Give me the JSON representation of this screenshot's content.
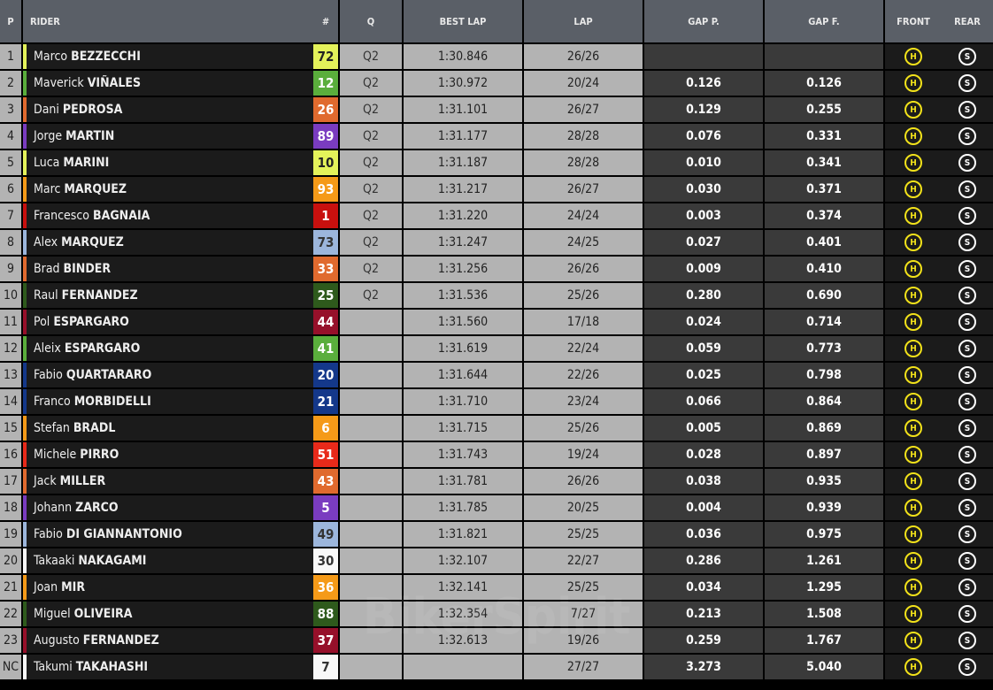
{
  "headers": {
    "p": "P",
    "rider": "RIDER",
    "num": "#",
    "q": "Q",
    "best": "BEST LAP",
    "lap": "LAP",
    "gap_p": "GAP P.",
    "gap_f": "GAP F.",
    "front": "FRONT",
    "rear": "REAR"
  },
  "tyre_colors": {
    "H": "#f2e21a",
    "S": "#ffffff"
  },
  "watermark": "BikerSpirit",
  "rows": [
    {
      "p": "1",
      "first": "Marco",
      "last": "BEZZECCHI",
      "num": "72",
      "color": "#e4f25a",
      "text": "#222",
      "q": "Q2",
      "best": "1:30.846",
      "lap": "26/26",
      "gap_p": "",
      "gap_f": "",
      "front": "H",
      "rear": "S"
    },
    {
      "p": "2",
      "first": "Maverick",
      "last": "VIÑALES",
      "num": "12",
      "color": "#5aae3c",
      "text": "#fff",
      "q": "Q2",
      "best": "1:30.972",
      "lap": "20/24",
      "gap_p": "0.126",
      "gap_f": "0.126",
      "front": "H",
      "rear": "S"
    },
    {
      "p": "3",
      "first": "Dani",
      "last": "PEDROSA",
      "num": "26",
      "color": "#e06a2e",
      "text": "#fff",
      "q": "Q2",
      "best": "1:31.101",
      "lap": "26/27",
      "gap_p": "0.129",
      "gap_f": "0.255",
      "front": "H",
      "rear": "S"
    },
    {
      "p": "4",
      "first": "Jorge",
      "last": "MARTIN",
      "num": "89",
      "color": "#7a3cc0",
      "text": "#fff",
      "q": "Q2",
      "best": "1:31.177",
      "lap": "28/28",
      "gap_p": "0.076",
      "gap_f": "0.331",
      "front": "H",
      "rear": "S"
    },
    {
      "p": "5",
      "first": "Luca",
      "last": "MARINI",
      "num": "10",
      "color": "#e4f25a",
      "text": "#222",
      "q": "Q2",
      "best": "1:31.187",
      "lap": "28/28",
      "gap_p": "0.010",
      "gap_f": "0.341",
      "front": "H",
      "rear": "S"
    },
    {
      "p": "6",
      "first": "Marc",
      "last": "MARQUEZ",
      "num": "93",
      "color": "#f59a18",
      "text": "#fff",
      "q": "Q2",
      "best": "1:31.217",
      "lap": "26/27",
      "gap_p": "0.030",
      "gap_f": "0.371",
      "front": "H",
      "rear": "S"
    },
    {
      "p": "7",
      "first": "Francesco",
      "last": "BAGNAIA",
      "num": "1",
      "color": "#c8100e",
      "text": "#fff",
      "q": "Q2",
      "best": "1:31.220",
      "lap": "24/24",
      "gap_p": "0.003",
      "gap_f": "0.374",
      "front": "H",
      "rear": "S"
    },
    {
      "p": "8",
      "first": "Alex",
      "last": "MARQUEZ",
      "num": "73",
      "color": "#9cb6dc",
      "text": "#333",
      "q": "Q2",
      "best": "1:31.247",
      "lap": "24/25",
      "gap_p": "0.027",
      "gap_f": "0.401",
      "front": "H",
      "rear": "S"
    },
    {
      "p": "9",
      "first": "Brad",
      "last": "BINDER",
      "num": "33",
      "color": "#e06a2e",
      "text": "#fff",
      "q": "Q2",
      "best": "1:31.256",
      "lap": "26/26",
      "gap_p": "0.009",
      "gap_f": "0.410",
      "front": "H",
      "rear": "S"
    },
    {
      "p": "10",
      "first": "Raul",
      "last": "FERNANDEZ",
      "num": "25",
      "color": "#2e5a1c",
      "text": "#fff",
      "q": "Q2",
      "best": "1:31.536",
      "lap": "25/26",
      "gap_p": "0.280",
      "gap_f": "0.690",
      "front": "H",
      "rear": "S"
    },
    {
      "p": "11",
      "first": "Pol",
      "last": "ESPARGARO",
      "num": "44",
      "color": "#96102a",
      "text": "#fff",
      "q": "",
      "best": "1:31.560",
      "lap": "17/18",
      "gap_p": "0.024",
      "gap_f": "0.714",
      "front": "H",
      "rear": "S"
    },
    {
      "p": "12",
      "first": "Aleix",
      "last": "ESPARGARO",
      "num": "41",
      "color": "#5aae3c",
      "text": "#fff",
      "q": "",
      "best": "1:31.619",
      "lap": "22/24",
      "gap_p": "0.059",
      "gap_f": "0.773",
      "front": "H",
      "rear": "S"
    },
    {
      "p": "13",
      "first": "Fabio",
      "last": "QUARTARARO",
      "num": "20",
      "color": "#14388a",
      "text": "#fff",
      "q": "",
      "best": "1:31.644",
      "lap": "22/26",
      "gap_p": "0.025",
      "gap_f": "0.798",
      "front": "H",
      "rear": "S"
    },
    {
      "p": "14",
      "first": "Franco",
      "last": "MORBIDELLI",
      "num": "21",
      "color": "#14388a",
      "text": "#fff",
      "q": "",
      "best": "1:31.710",
      "lap": "23/24",
      "gap_p": "0.066",
      "gap_f": "0.864",
      "front": "H",
      "rear": "S"
    },
    {
      "p": "15",
      "first": "Stefan",
      "last": "BRADL",
      "num": "6",
      "color": "#f59a18",
      "text": "#fff",
      "q": "",
      "best": "1:31.715",
      "lap": "25/26",
      "gap_p": "0.005",
      "gap_f": "0.869",
      "front": "H",
      "rear": "S"
    },
    {
      "p": "16",
      "first": "Michele",
      "last": "PIRRO",
      "num": "51",
      "color": "#e82a1a",
      "text": "#fff",
      "q": "",
      "best": "1:31.743",
      "lap": "19/24",
      "gap_p": "0.028",
      "gap_f": "0.897",
      "front": "H",
      "rear": "S"
    },
    {
      "p": "17",
      "first": "Jack",
      "last": "MILLER",
      "num": "43",
      "color": "#e06a2e",
      "text": "#fff",
      "q": "",
      "best": "1:31.781",
      "lap": "26/26",
      "gap_p": "0.038",
      "gap_f": "0.935",
      "front": "H",
      "rear": "S"
    },
    {
      "p": "18",
      "first": "Johann",
      "last": "ZARCO",
      "num": "5",
      "color": "#7a3cc0",
      "text": "#fff",
      "q": "",
      "best": "1:31.785",
      "lap": "20/25",
      "gap_p": "0.004",
      "gap_f": "0.939",
      "front": "H",
      "rear": "S"
    },
    {
      "p": "19",
      "first": "Fabio",
      "last": "DI GIANNANTONIO",
      "num": "49",
      "color": "#9cb6dc",
      "text": "#333",
      "q": "",
      "best": "1:31.821",
      "lap": "25/25",
      "gap_p": "0.036",
      "gap_f": "0.975",
      "front": "H",
      "rear": "S"
    },
    {
      "p": "20",
      "first": "Takaaki",
      "last": "NAKAGAMI",
      "num": "30",
      "color": "#f8f8f8",
      "text": "#333",
      "q": "",
      "best": "1:32.107",
      "lap": "22/27",
      "gap_p": "0.286",
      "gap_f": "1.261",
      "front": "H",
      "rear": "S"
    },
    {
      "p": "21",
      "first": "Joan",
      "last": "MIR",
      "num": "36",
      "color": "#f59a18",
      "text": "#fff",
      "q": "",
      "best": "1:32.141",
      "lap": "25/25",
      "gap_p": "0.034",
      "gap_f": "1.295",
      "front": "H",
      "rear": "S"
    },
    {
      "p": "22",
      "first": "Miguel",
      "last": "OLIVEIRA",
      "num": "88",
      "color": "#2e5a1c",
      "text": "#fff",
      "q": "",
      "best": "1:32.354",
      "lap": "7/27",
      "gap_p": "0.213",
      "gap_f": "1.508",
      "front": "H",
      "rear": "S"
    },
    {
      "p": "23",
      "first": "Augusto",
      "last": "FERNANDEZ",
      "num": "37",
      "color": "#96102a",
      "text": "#fff",
      "q": "",
      "best": "1:32.613",
      "lap": "19/26",
      "gap_p": "0.259",
      "gap_f": "1.767",
      "front": "H",
      "rear": "S"
    },
    {
      "p": "NC",
      "first": "Takumi",
      "last": "TAKAHASHI",
      "num": "7",
      "color": "#f8f8f8",
      "text": "#333",
      "q": "",
      "best": "",
      "lap": "27/27",
      "gap_p": "3.273",
      "gap_f": "5.040",
      "front": "H",
      "rear": "S"
    }
  ]
}
